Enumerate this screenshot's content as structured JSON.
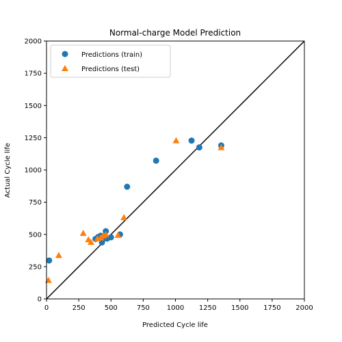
{
  "chart_data": {
    "type": "scatter",
    "title": "Normal-charge Model Prediction",
    "xlabel": "Predicted Cycle life",
    "ylabel": "Actual Cycle life",
    "xlim": [
      0,
      2000
    ],
    "ylim": [
      0,
      2000
    ],
    "x_ticks": [
      "0",
      "250",
      "500",
      "750",
      "1000",
      "1250",
      "1500",
      "1750",
      "2000"
    ],
    "y_ticks": [
      "0",
      "250",
      "500",
      "750",
      "1000",
      "1250",
      "1500",
      "1750",
      "2000"
    ],
    "grid": false,
    "legend_position": "top-left",
    "reference_line": {
      "from": [
        0,
        0
      ],
      "to": [
        2000,
        2000
      ],
      "color": "#000000"
    },
    "series": [
      {
        "name": "Predictions (train)",
        "marker": "circle",
        "color": "#1f77b4",
        "points": [
          [
            20,
            298
          ],
          [
            380,
            465
          ],
          [
            400,
            480
          ],
          [
            420,
            490
          ],
          [
            430,
            438
          ],
          [
            450,
            480
          ],
          [
            460,
            525
          ],
          [
            470,
            468
          ],
          [
            500,
            478
          ],
          [
            570,
            500
          ],
          [
            625,
            870
          ],
          [
            850,
            1072
          ],
          [
            1125,
            1228
          ],
          [
            1185,
            1175
          ],
          [
            1355,
            1190
          ]
        ]
      },
      {
        "name": "Predictions (test)",
        "marker": "triangle",
        "color": "#ff7f0e",
        "points": [
          [
            15,
            145
          ],
          [
            95,
            338
          ],
          [
            285,
            510
          ],
          [
            325,
            460
          ],
          [
            345,
            440
          ],
          [
            395,
            468
          ],
          [
            420,
            475
          ],
          [
            440,
            490
          ],
          [
            460,
            500
          ],
          [
            555,
            495
          ],
          [
            600,
            632
          ],
          [
            1005,
            1228
          ],
          [
            1355,
            1175
          ]
        ]
      }
    ]
  }
}
